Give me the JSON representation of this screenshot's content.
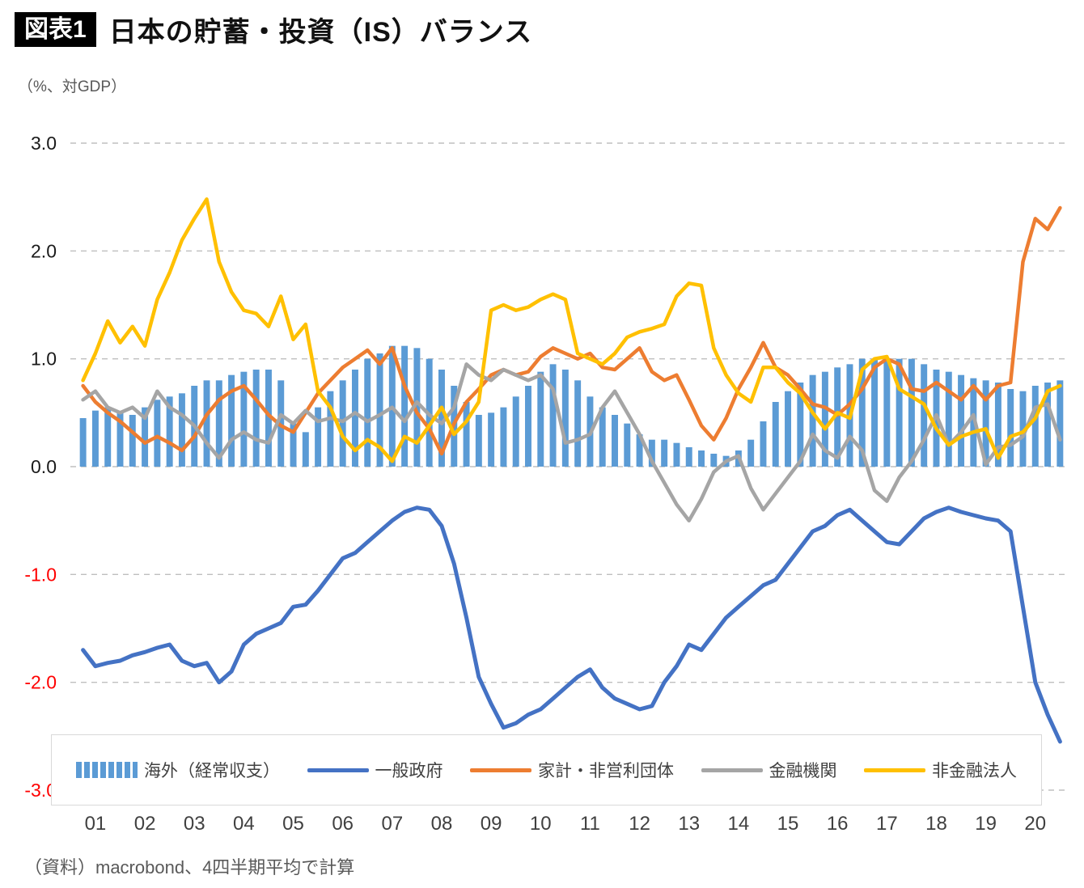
{
  "header": {
    "badge": "図表1",
    "title": "日本の貯蓄・投資（IS）バランス",
    "unit_label": "（%、対GDP）"
  },
  "source_note": "（資料）macrobond、4四半期平均で計算",
  "chart_data": {
    "type": "combo",
    "title": "日本の貯蓄・投資（IS）バランス",
    "ylabel": "（%、対GDP）",
    "ylim": [
      -3.0,
      3.0
    ],
    "grid": "horizontal-dashed",
    "legend_position": "bottom-boxed",
    "negative_tick_color": "#FF0000",
    "points_per_year": 4,
    "x_note": "quarterly, 4-quarter average, 2001Q1 - 2020Q4",
    "x_labels": [
      "01",
      "02",
      "03",
      "04",
      "05",
      "06",
      "07",
      "08",
      "09",
      "10",
      "11",
      "12",
      "13",
      "14",
      "15",
      "16",
      "17",
      "18",
      "19",
      "20"
    ],
    "y_ticks": [
      {
        "label": "3.0",
        "value": 3
      },
      {
        "label": "2.0",
        "value": 2
      },
      {
        "label": "1.0",
        "value": 1
      },
      {
        "label": "0.0",
        "value": 0
      },
      {
        "label": "-1.0",
        "value": -1
      },
      {
        "label": "-2.0",
        "value": -2
      },
      {
        "label": "-3.0",
        "value": -3
      }
    ],
    "series": [
      {
        "name": "海外（経常収支）",
        "type": "bar",
        "color": "#5B9BD5",
        "values": [
          0.45,
          0.52,
          0.55,
          0.5,
          0.48,
          0.55,
          0.62,
          0.65,
          0.68,
          0.75,
          0.8,
          0.8,
          0.85,
          0.88,
          0.9,
          0.9,
          0.8,
          0.4,
          0.32,
          0.55,
          0.7,
          0.8,
          0.9,
          1.0,
          1.05,
          1.12,
          1.12,
          1.1,
          1.0,
          0.9,
          0.75,
          0.6,
          0.48,
          0.5,
          0.55,
          0.65,
          0.75,
          0.88,
          0.95,
          0.9,
          0.8,
          0.65,
          0.55,
          0.48,
          0.4,
          0.3,
          0.25,
          0.25,
          0.22,
          0.18,
          0.15,
          0.12,
          0.1,
          0.15,
          0.25,
          0.42,
          0.6,
          0.7,
          0.78,
          0.85,
          0.88,
          0.92,
          0.95,
          1.0,
          1.0,
          1.0,
          1.0,
          1.0,
          0.95,
          0.9,
          0.88,
          0.85,
          0.82,
          0.8,
          0.78,
          0.72,
          0.7,
          0.75,
          0.78,
          0.8
        ]
      },
      {
        "name": "一般政府",
        "type": "line",
        "color": "#4472C4",
        "stroke_width": 5,
        "values": [
          -1.7,
          -1.85,
          -1.82,
          -1.8,
          -1.75,
          -1.72,
          -1.68,
          -1.65,
          -1.8,
          -1.85,
          -1.82,
          -2.0,
          -1.9,
          -1.65,
          -1.55,
          -1.5,
          -1.45,
          -1.3,
          -1.28,
          -1.15,
          -1.0,
          -0.85,
          -0.8,
          -0.7,
          -0.6,
          -0.5,
          -0.42,
          -0.38,
          -0.4,
          -0.55,
          -0.9,
          -1.4,
          -1.95,
          -2.2,
          -2.42,
          -2.38,
          -2.3,
          -2.25,
          -2.15,
          -2.05,
          -1.95,
          -1.88,
          -2.05,
          -2.15,
          -2.2,
          -2.25,
          -2.22,
          -2.0,
          -1.85,
          -1.65,
          -1.7,
          -1.55,
          -1.4,
          -1.3,
          -1.2,
          -1.1,
          -1.05,
          -0.9,
          -0.75,
          -0.6,
          -0.55,
          -0.45,
          -0.4,
          -0.5,
          -0.6,
          -0.7,
          -0.72,
          -0.6,
          -0.48,
          -0.42,
          -0.38,
          -0.42,
          -0.45,
          -0.48,
          -0.5,
          -0.6,
          -1.3,
          -2.0,
          -2.3,
          -2.55
        ]
      },
      {
        "name": "家計・非営利団体",
        "type": "line",
        "color": "#ED7D31",
        "stroke_width": 4.5,
        "values": [
          0.75,
          0.6,
          0.5,
          0.42,
          0.32,
          0.22,
          0.28,
          0.22,
          0.15,
          0.28,
          0.48,
          0.62,
          0.7,
          0.75,
          0.62,
          0.48,
          0.38,
          0.32,
          0.5,
          0.68,
          0.8,
          0.92,
          1.0,
          1.08,
          0.95,
          1.1,
          0.75,
          0.5,
          0.35,
          0.12,
          0.4,
          0.6,
          0.72,
          0.85,
          0.9,
          0.85,
          0.88,
          1.02,
          1.1,
          1.05,
          1.0,
          1.05,
          0.92,
          0.9,
          1.0,
          1.1,
          0.88,
          0.8,
          0.85,
          0.62,
          0.38,
          0.25,
          0.45,
          0.72,
          0.92,
          1.15,
          0.92,
          0.85,
          0.72,
          0.58,
          0.55,
          0.48,
          0.58,
          0.72,
          0.92,
          1.0,
          0.95,
          0.72,
          0.7,
          0.78,
          0.7,
          0.62,
          0.75,
          0.62,
          0.75,
          0.78,
          1.9,
          2.3,
          2.2,
          2.4
        ]
      },
      {
        "name": "金融機関",
        "type": "line",
        "color": "#A5A5A5",
        "stroke_width": 4.5,
        "values": [
          0.62,
          0.7,
          0.55,
          0.5,
          0.55,
          0.45,
          0.7,
          0.55,
          0.48,
          0.38,
          0.22,
          0.08,
          0.25,
          0.32,
          0.25,
          0.22,
          0.48,
          0.4,
          0.52,
          0.42,
          0.45,
          0.42,
          0.5,
          0.42,
          0.48,
          0.55,
          0.42,
          0.6,
          0.48,
          0.4,
          0.55,
          0.95,
          0.85,
          0.8,
          0.9,
          0.85,
          0.8,
          0.85,
          0.72,
          0.22,
          0.25,
          0.3,
          0.55,
          0.7,
          0.5,
          0.3,
          0.05,
          -0.15,
          -0.35,
          -0.5,
          -0.3,
          -0.05,
          0.05,
          0.1,
          -0.2,
          -0.4,
          -0.25,
          -0.1,
          0.05,
          0.3,
          0.15,
          0.08,
          0.28,
          0.15,
          -0.22,
          -0.32,
          -0.1,
          0.05,
          0.25,
          0.48,
          0.2,
          0.32,
          0.48,
          0.02,
          0.18,
          0.2,
          0.28,
          0.55,
          0.58,
          0.25
        ]
      },
      {
        "name": "非金融法人",
        "type": "line",
        "color": "#FFC000",
        "stroke_width": 4.5,
        "values": [
          0.8,
          1.05,
          1.35,
          1.15,
          1.3,
          1.12,
          1.55,
          1.8,
          2.1,
          2.3,
          2.48,
          1.9,
          1.62,
          1.45,
          1.42,
          1.3,
          1.58,
          1.18,
          1.32,
          0.7,
          0.55,
          0.28,
          0.15,
          0.25,
          0.18,
          0.05,
          0.28,
          0.22,
          0.38,
          0.55,
          0.3,
          0.42,
          0.6,
          1.45,
          1.5,
          1.45,
          1.48,
          1.55,
          1.6,
          1.55,
          1.05,
          1.0,
          0.95,
          1.05,
          1.2,
          1.25,
          1.28,
          1.32,
          1.58,
          1.7,
          1.68,
          1.1,
          0.85,
          0.68,
          0.6,
          0.92,
          0.92,
          0.78,
          0.68,
          0.5,
          0.35,
          0.5,
          0.45,
          0.9,
          1.0,
          1.02,
          0.72,
          0.65,
          0.58,
          0.35,
          0.2,
          0.28,
          0.32,
          0.35,
          0.08,
          0.28,
          0.32,
          0.45,
          0.7,
          0.75
        ]
      }
    ]
  }
}
